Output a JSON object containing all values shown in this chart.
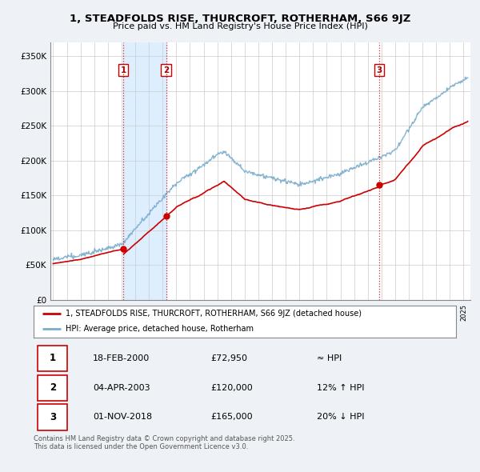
{
  "title": "1, STEADFOLDS RISE, THURCROFT, ROTHERHAM, S66 9JZ",
  "subtitle": "Price paid vs. HM Land Registry's House Price Index (HPI)",
  "ylim": [
    0,
    370000
  ],
  "yticks": [
    0,
    50000,
    100000,
    150000,
    200000,
    250000,
    300000,
    350000
  ],
  "ytick_labels": [
    "£0",
    "£50K",
    "£100K",
    "£150K",
    "£200K",
    "£250K",
    "£300K",
    "£350K"
  ],
  "sale_dates": [
    2000.12,
    2003.25,
    2018.83
  ],
  "sale_prices": [
    72950,
    120000,
    165000
  ],
  "sale_labels": [
    "1",
    "2",
    "3"
  ],
  "vline_color": "#cc0000",
  "hpi_color": "#7aadcc",
  "price_color": "#cc0000",
  "shade_color": "#ddeeff",
  "background_color": "#eef2f7",
  "plot_bg_color": "#ffffff",
  "legend_price_label": "1, STEADFOLDS RISE, THURCROFT, ROTHERHAM, S66 9JZ (detached house)",
  "legend_hpi_label": "HPI: Average price, detached house, Rotherham",
  "table_rows": [
    [
      "1",
      "18-FEB-2000",
      "£72,950",
      "≈ HPI"
    ],
    [
      "2",
      "04-APR-2003",
      "£120,000",
      "12% ↑ HPI"
    ],
    [
      "3",
      "01-NOV-2018",
      "£165,000",
      "20% ↓ HPI"
    ]
  ],
  "footnote": "Contains HM Land Registry data © Crown copyright and database right 2025.\nThis data is licensed under the Open Government Licence v3.0.",
  "xlim_start": 1994.8,
  "xlim_end": 2025.5
}
